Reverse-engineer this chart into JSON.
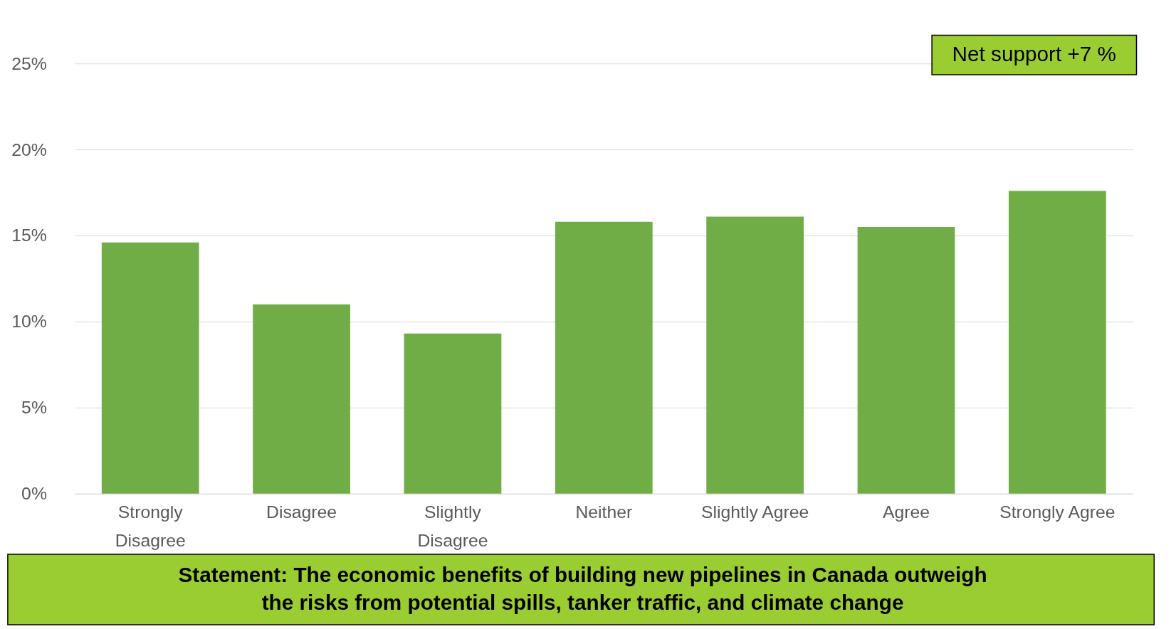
{
  "chart_data": {
    "type": "bar",
    "title": "Statement: The economic benefits of building new pipelines in Canada outweigh the risks from potential spills, tanker traffic, and climate change",
    "categories": [
      "Strongly Disagree",
      "Disagree",
      "Slightly Disagree",
      "Neither",
      "Slightly Agree",
      "Agree",
      "Strongly Agree"
    ],
    "values": [
      14.6,
      11.0,
      9.3,
      15.8,
      16.1,
      15.5,
      17.6
    ],
    "color": "#70ad47",
    "ylim": [
      0,
      25
    ],
    "yticks": [
      {
        "value": 0,
        "label": "0%"
      },
      {
        "value": 5,
        "label": "5%"
      },
      {
        "value": 10,
        "label": "10%"
      },
      {
        "value": 15,
        "label": "15%"
      },
      {
        "value": 20,
        "label": "20%"
      },
      {
        "value": 25,
        "label": "25%"
      }
    ],
    "grid": "y",
    "annotations": [
      "Net support +7 %"
    ]
  }
}
